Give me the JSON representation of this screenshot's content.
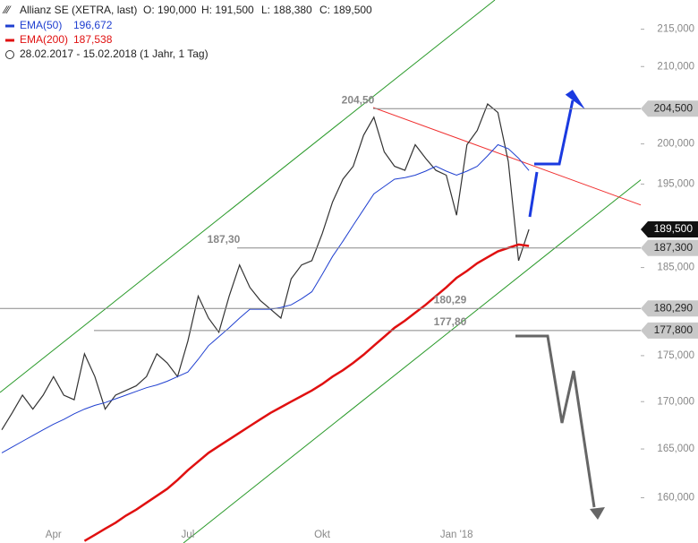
{
  "chart_data": {
    "type": "line",
    "log_scale": true,
    "ohlc_labels": [
      "O: 190,000",
      "H: 191,500",
      "L: 188,380",
      "C: 189,500"
    ],
    "subtitle": "28.02.2017 - 15.02.2018  (1 Jahr, 1 Tag)",
    "categories": [
      null,
      null,
      null,
      null,
      null,
      "Apr",
      null,
      null,
      null,
      null,
      null,
      null,
      null,
      null,
      null,
      null,
      null,
      null,
      "Jul",
      null,
      null,
      null,
      null,
      null,
      null,
      null,
      null,
      null,
      null,
      null,
      null,
      "Okt",
      null,
      null,
      null,
      null,
      null,
      null,
      null,
      null,
      null,
      null,
      null,
      null,
      "Jan '18",
      null,
      null,
      null,
      null,
      null,
      null,
      null
    ],
    "series": [
      {
        "name": "Allianz SE (XETRA, last)",
        "color": "#333333",
        "value_label": "189,500",
        "values": [
          167000,
          168800,
          170700,
          169200,
          170700,
          172700,
          170700,
          170200,
          175200,
          172700,
          169200,
          170700,
          171200,
          171700,
          172700,
          175200,
          174200,
          172700,
          176600,
          181700,
          179200,
          177600,
          181700,
          185300,
          182700,
          181200,
          180200,
          179200,
          183700,
          185300,
          185800,
          189000,
          192800,
          195600,
          197200,
          201100,
          203400,
          199000,
          197200,
          196700,
          199900,
          198200,
          196700,
          196100,
          191200,
          199900,
          201700,
          205100,
          204000,
          197800,
          185800,
          189500
        ]
      },
      {
        "name": "EMA(50)",
        "color": "#2040d0",
        "value_label": "196,672",
        "values": [
          164600,
          165200,
          165800,
          166400,
          167000,
          167600,
          168100,
          168700,
          169200,
          169600,
          169900,
          170300,
          170700,
          171100,
          171500,
          171800,
          172200,
          172700,
          173200,
          174600,
          176100,
          177100,
          178100,
          179200,
          180200,
          180200,
          180200,
          180400,
          180700,
          181400,
          182200,
          184200,
          186300,
          188100,
          190000,
          191900,
          193800,
          194700,
          195600,
          195800,
          196100,
          196600,
          197200,
          196600,
          196100,
          196600,
          197200,
          198500,
          199900,
          199400,
          198200,
          196672
        ]
      },
      {
        "name": "EMA(200)",
        "color": "#e01010",
        "value_label": "187,538",
        "values": [
          null,
          null,
          null,
          null,
          null,
          null,
          null,
          null,
          155700,
          156300,
          156900,
          157500,
          158200,
          158800,
          159500,
          160200,
          160900,
          161800,
          162800,
          163700,
          164600,
          165300,
          166000,
          166700,
          167400,
          168100,
          168800,
          169400,
          170000,
          170600,
          171200,
          171900,
          172700,
          173400,
          174200,
          175100,
          176100,
          177100,
          178100,
          178900,
          179800,
          180700,
          181700,
          182700,
          183800,
          184600,
          185500,
          186200,
          186900,
          187300,
          187700,
          187538
        ]
      }
    ],
    "levels": [
      {
        "value": 204500,
        "label": "204,500",
        "note": "204,50"
      },
      {
        "value": 187300,
        "label": "187,300",
        "note": "187,30"
      },
      {
        "value": 180290,
        "label": "180,290",
        "note": "180,29"
      },
      {
        "value": 177800,
        "label": "177,800",
        "note": "177,80"
      }
    ],
    "ylim": [
      155500,
      219000
    ],
    "yticks": [
      {
        "value": 160000,
        "label": "160,000"
      },
      {
        "value": 165000,
        "label": "165,000"
      },
      {
        "value": 170000,
        "label": "170,000"
      },
      {
        "value": 175000,
        "label": "175,000"
      },
      {
        "value": 185000,
        "label": "185,000"
      },
      {
        "value": 195000,
        "label": "195,000"
      },
      {
        "value": 200000,
        "label": "200,000"
      },
      {
        "value": 210000,
        "label": "210,000"
      },
      {
        "value": 215000,
        "label": "215,000"
      }
    ]
  }
}
